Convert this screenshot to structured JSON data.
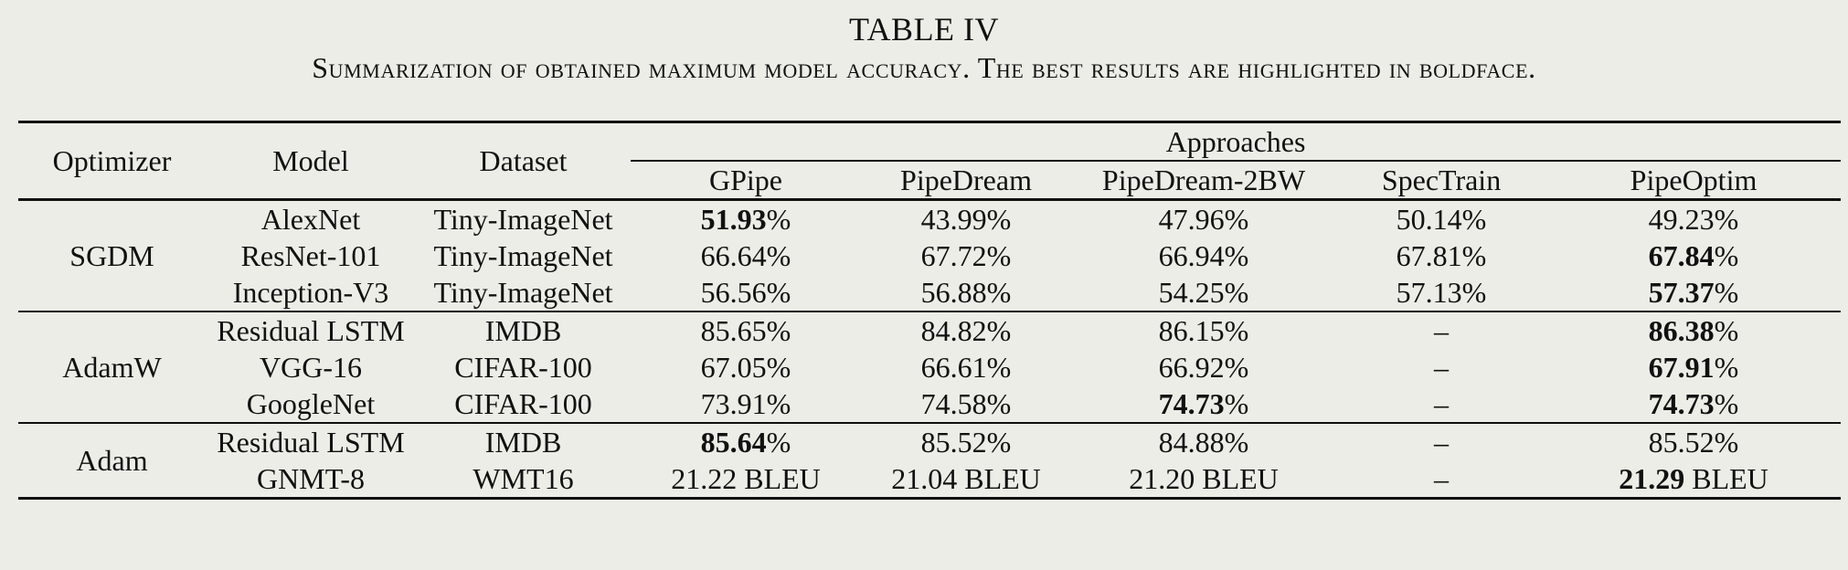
{
  "caption": {
    "title": "TABLE IV",
    "subtitle": "Summarization of obtained maximum model accuracy. The best results are highlighted in boldface."
  },
  "header": {
    "optimizer": "Optimizer",
    "model": "Model",
    "dataset": "Dataset",
    "approaches": "Approaches",
    "methods": [
      "GPipe",
      "PipeDream",
      "PipeDream-2BW",
      "SpecTrain",
      "PipeOptim"
    ]
  },
  "groups": [
    {
      "optimizer": "SGDM",
      "rows": [
        {
          "model": "AlexNet",
          "dataset": "Tiny-ImageNet",
          "cells": [
            {
              "v": "51.93",
              "u": "%",
              "b": true
            },
            {
              "v": "43.99",
              "u": "%"
            },
            {
              "v": "47.96",
              "u": "%"
            },
            {
              "v": "50.14",
              "u": "%"
            },
            {
              "v": "49.23",
              "u": "%"
            }
          ]
        },
        {
          "model": "ResNet-101",
          "dataset": "Tiny-ImageNet",
          "cells": [
            {
              "v": "66.64",
              "u": "%"
            },
            {
              "v": "67.72",
              "u": "%"
            },
            {
              "v": "66.94",
              "u": "%"
            },
            {
              "v": "67.81",
              "u": "%"
            },
            {
              "v": "67.84",
              "u": "%",
              "b": true
            }
          ]
        },
        {
          "model": "Inception-V3",
          "dataset": "Tiny-ImageNet",
          "cells": [
            {
              "v": "56.56",
              "u": "%"
            },
            {
              "v": "56.88",
              "u": "%"
            },
            {
              "v": "54.25",
              "u": "%"
            },
            {
              "v": "57.13",
              "u": "%"
            },
            {
              "v": "57.37",
              "u": "%",
              "b": true
            }
          ]
        }
      ]
    },
    {
      "optimizer": "AdamW",
      "rows": [
        {
          "model": "Residual LSTM",
          "dataset": "IMDB",
          "cells": [
            {
              "v": "85.65",
              "u": "%"
            },
            {
              "v": "84.82",
              "u": "%"
            },
            {
              "v": "86.15",
              "u": "%"
            },
            {
              "v": "–",
              "u": ""
            },
            {
              "v": "86.38",
              "u": "%",
              "b": true
            }
          ]
        },
        {
          "model": "VGG-16",
          "dataset": "CIFAR-100",
          "cells": [
            {
              "v": "67.05",
              "u": "%"
            },
            {
              "v": "66.61",
              "u": "%"
            },
            {
              "v": "66.92",
              "u": "%"
            },
            {
              "v": "–",
              "u": ""
            },
            {
              "v": "67.91",
              "u": "%",
              "b": true
            }
          ]
        },
        {
          "model": "GoogleNet",
          "dataset": "CIFAR-100",
          "cells": [
            {
              "v": "73.91",
              "u": "%"
            },
            {
              "v": "74.58",
              "u": "%"
            },
            {
              "v": "74.73",
              "u": "%",
              "b": true
            },
            {
              "v": "–",
              "u": ""
            },
            {
              "v": "74.73",
              "u": "%",
              "b": true
            }
          ]
        }
      ]
    },
    {
      "optimizer": "Adam",
      "rows": [
        {
          "model": "Residual LSTM",
          "dataset": "IMDB",
          "cells": [
            {
              "v": "85.64",
              "u": "%",
              "b": true
            },
            {
              "v": "85.52",
              "u": "%"
            },
            {
              "v": "84.88",
              "u": "%"
            },
            {
              "v": "–",
              "u": ""
            },
            {
              "v": "85.52",
              "u": "%"
            }
          ]
        },
        {
          "model": "GNMT-8",
          "dataset": "WMT16",
          "cells": [
            {
              "v": "21.22",
              "u": " BLEU"
            },
            {
              "v": "21.04",
              "u": " BLEU"
            },
            {
              "v": "21.20",
              "u": " BLEU"
            },
            {
              "v": "–",
              "u": ""
            },
            {
              "v": "21.29",
              "u": " BLEU",
              "b": true
            }
          ]
        }
      ]
    }
  ]
}
